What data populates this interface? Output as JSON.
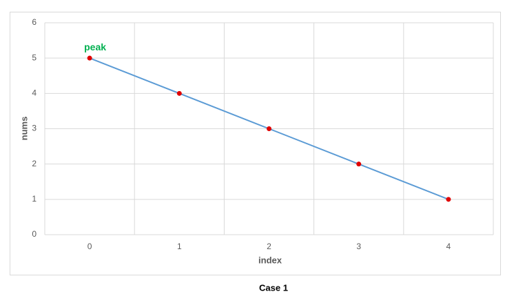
{
  "chart_data": {
    "type": "line",
    "categories": [
      "0",
      "1",
      "2",
      "3",
      "4"
    ],
    "values": [
      5,
      4,
      3,
      2,
      1
    ],
    "color": "#5b9bd5",
    "marker_color": "#e00000",
    "x_label": "index",
    "y_label": "nums",
    "ylim": [
      0,
      6
    ],
    "yticks": [
      0,
      1,
      2,
      3,
      4,
      5,
      6
    ],
    "grid": true,
    "annotations": [
      {
        "text": "peak",
        "category": "0",
        "color": "#00b050"
      }
    ]
  },
  "caption": "Case 1"
}
